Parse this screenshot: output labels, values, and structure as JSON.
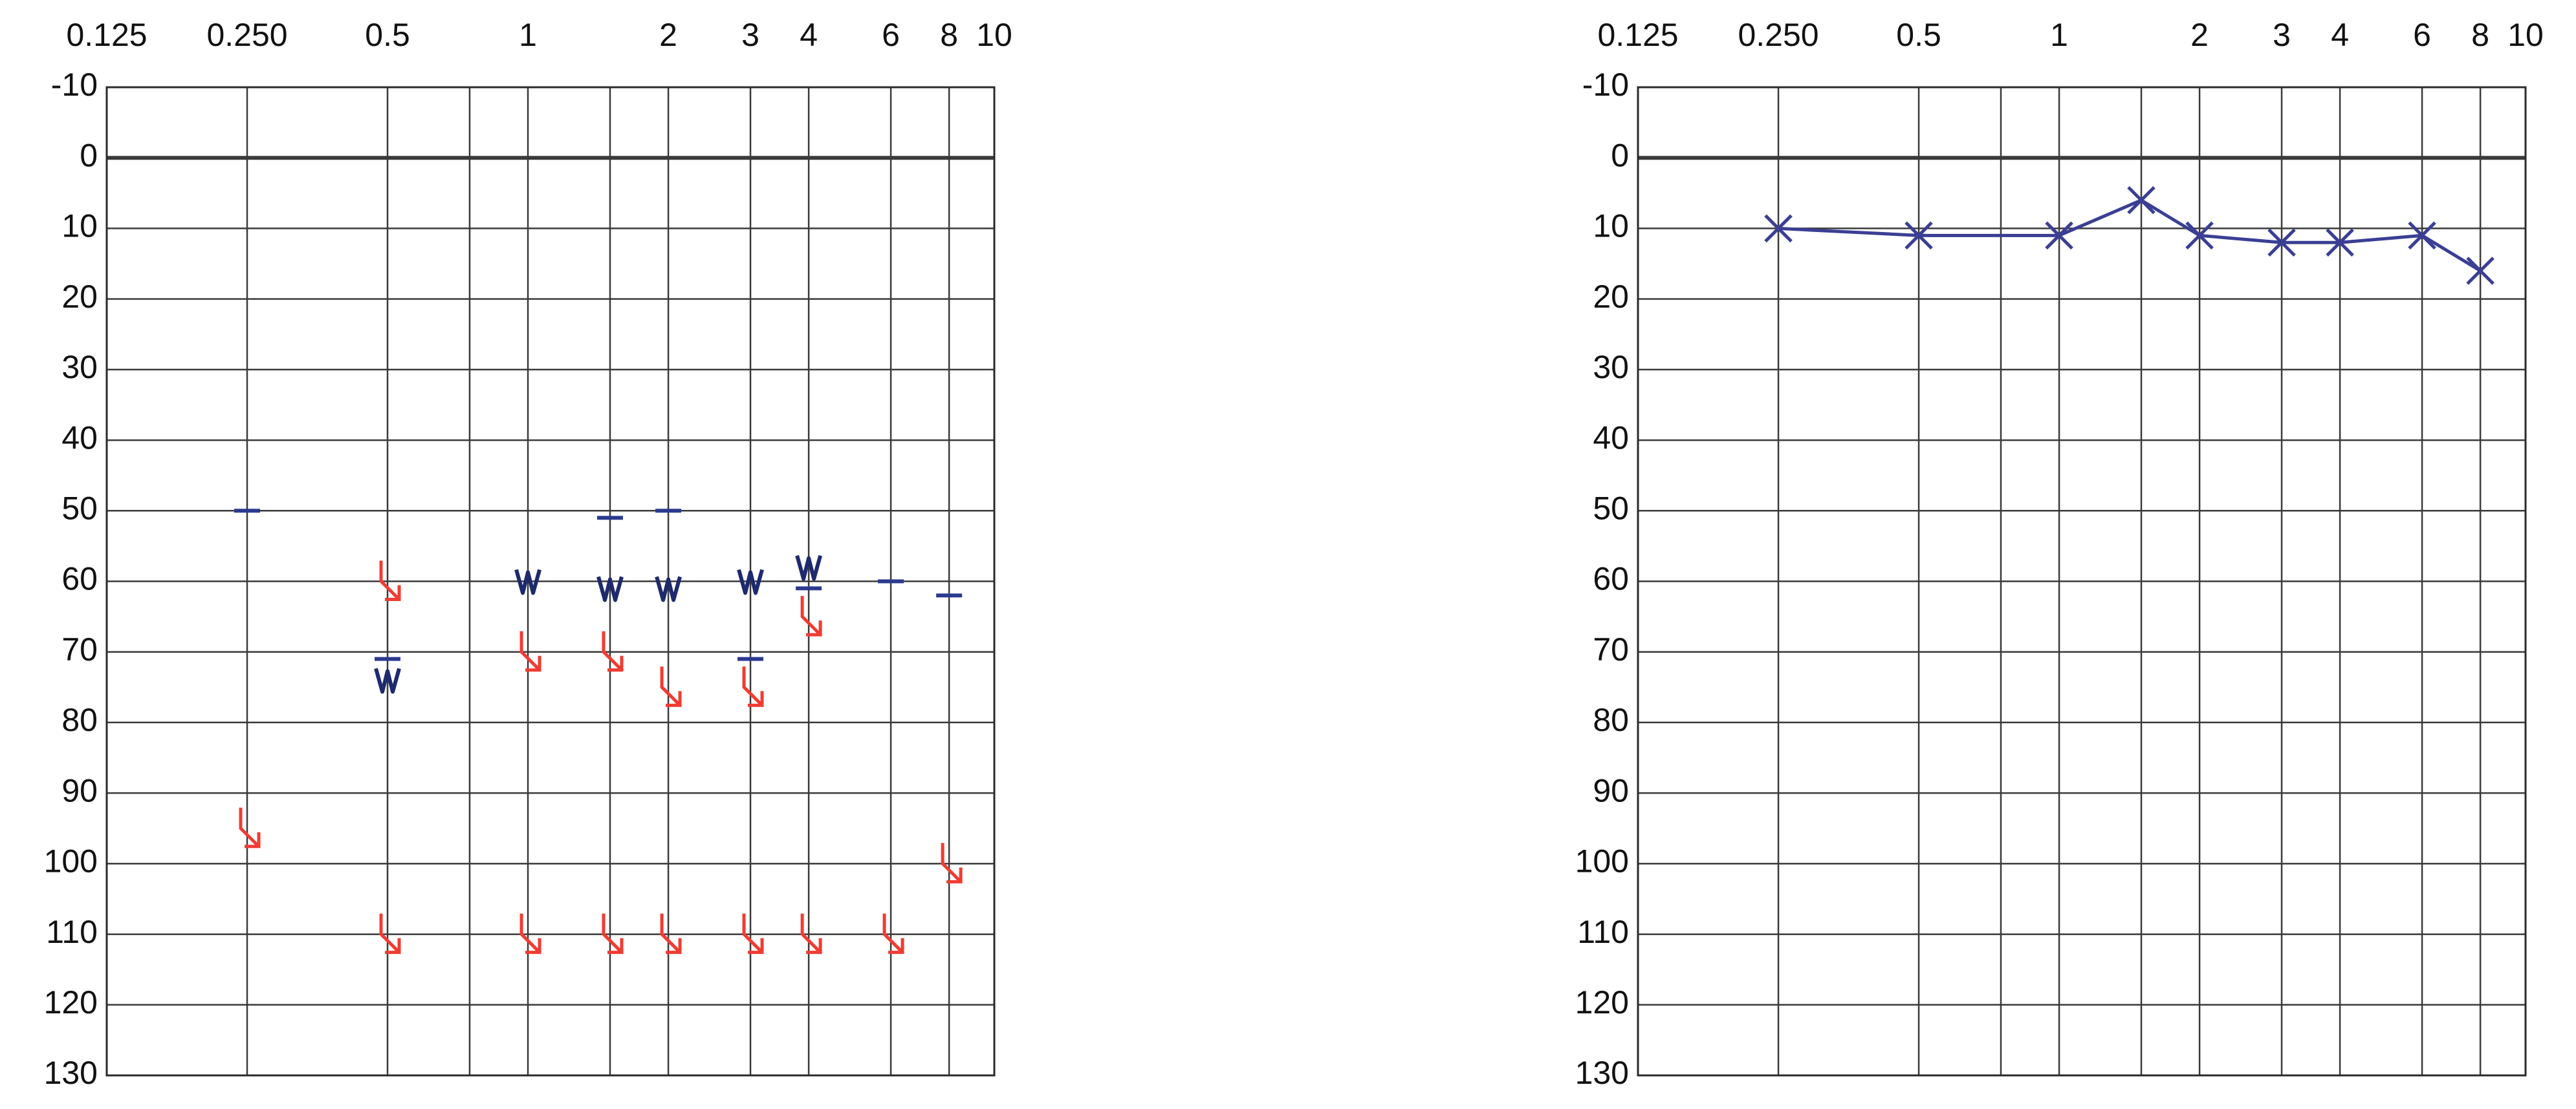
{
  "chart_data": [
    {
      "type": "marker",
      "x_log_scale": true,
      "y_inverted": true,
      "grid": true,
      "xlim": [
        0.125,
        10
      ],
      "ylim": [
        -10,
        130
      ],
      "xticks": [
        0.125,
        {
          "value": 0.25,
          "label": "0.250"
        },
        0.5,
        {
          "value": 0.75,
          "label": null
        },
        1,
        {
          "value": 1.5,
          "label": null
        },
        2,
        3,
        4,
        6,
        8,
        10
      ],
      "yticks": [
        -10,
        0,
        10,
        20,
        30,
        40,
        50,
        60,
        70,
        80,
        90,
        100,
        110,
        120,
        130
      ],
      "series": [
        {
          "marker": "dash",
          "color": "#2b3a8f",
          "x": [
            0.25,
            0.5,
            1.5,
            2,
            3,
            4,
            6,
            8
          ],
          "values": [
            50,
            71,
            51,
            50,
            71,
            61,
            60,
            62
          ]
        },
        {
          "marker": "zigzag",
          "color": "#1e2a6e",
          "x": [
            0.5,
            1,
            1.5,
            2,
            3,
            4
          ],
          "values": [
            74,
            60,
            61,
            61,
            60,
            58
          ]
        },
        {
          "marker": "arrow",
          "color": "#f03c32",
          "x": [
            0.25,
            0.5,
            1,
            1.5,
            2,
            3,
            4,
            8,
            0.5,
            1,
            1.5,
            2,
            3,
            4,
            6
          ],
          "values": [
            95,
            60,
            70,
            70,
            75,
            75,
            65,
            100,
            110,
            110,
            110,
            110,
            110,
            110,
            110
          ]
        }
      ]
    },
    {
      "type": "line",
      "x_log_scale": true,
      "y_inverted": true,
      "grid": true,
      "xlim": [
        0.125,
        10
      ],
      "ylim": [
        -10,
        130
      ],
      "xticks": [
        0.125,
        {
          "value": 0.25,
          "label": "0.250"
        },
        0.5,
        {
          "value": 0.75,
          "label": null
        },
        1,
        {
          "value": 1.5,
          "label": null
        },
        2,
        3,
        4,
        6,
        8,
        10
      ],
      "yticks": [
        -10,
        0,
        10,
        20,
        30,
        40,
        50,
        60,
        70,
        80,
        90,
        100,
        110,
        120,
        130
      ],
      "series": [
        {
          "marker": "cross",
          "color": "#3a3f94",
          "x": [
            0.25,
            0.5,
            1,
            1.5,
            2,
            3,
            4,
            6,
            8
          ],
          "values": [
            10,
            11,
            11,
            6,
            11,
            12,
            12,
            11,
            16
          ]
        }
      ]
    }
  ]
}
